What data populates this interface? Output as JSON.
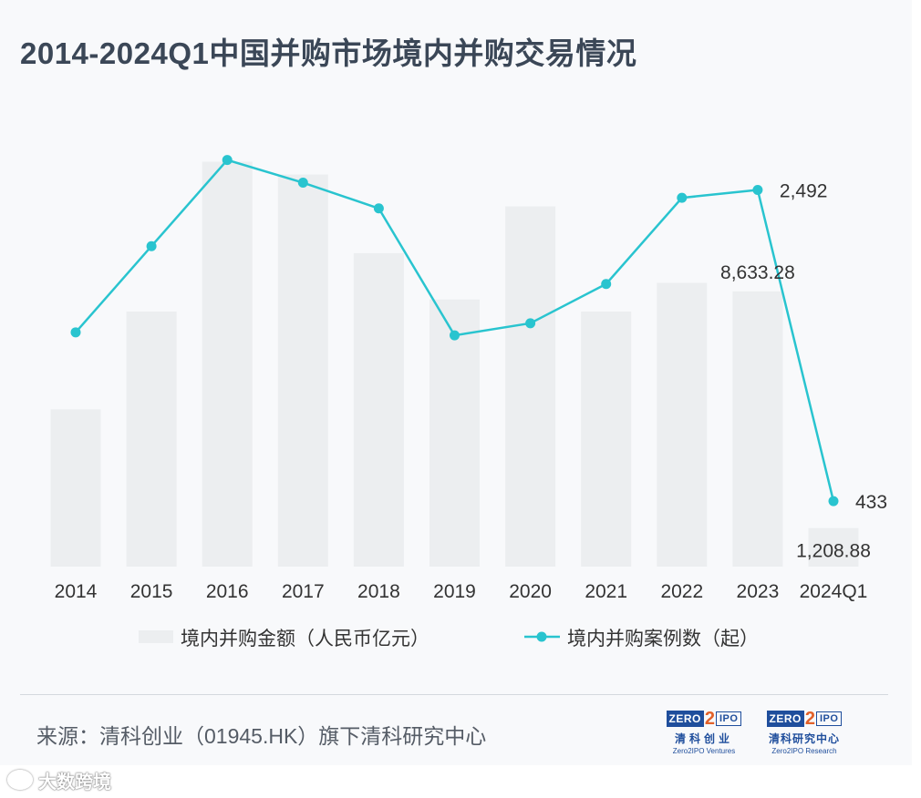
{
  "title": "2014-2024Q1中国并购市场境内并购交易情况",
  "source": "来源：清科创业（01945.HK）旗下清科研究中心",
  "watermark": "大数跨境",
  "logos": [
    {
      "mark_left": "ZERO",
      "mark_mid": "2",
      "mark_right": "IPO",
      "cn": "清科创业",
      "en": "Zero2IPO Ventures"
    },
    {
      "mark_left": "ZERO",
      "mark_mid": "2",
      "mark_right": "IPO",
      "cn": "清科研究中心",
      "en": "Zero2IPO Research"
    }
  ],
  "colors": {
    "bar": "#eceef0",
    "line": "#29c4cf",
    "text": "#333333",
    "title": "#3b4757"
  },
  "chart_data": {
    "type": "bar+line",
    "categories": [
      "2014",
      "2015",
      "2016",
      "2017",
      "2018",
      "2019",
      "2020",
      "2021",
      "2022",
      "2023",
      "2024Q1"
    ],
    "series": [
      {
        "name": "境内并购金额（人民币亿元）",
        "type": "bar",
        "values": [
          4932,
          8000,
          12700,
          12300,
          9830,
          8380,
          11300,
          8000,
          8900,
          8633.28,
          1208.88
        ]
      },
      {
        "name": "境内并购案例数（起）",
        "type": "line",
        "values": [
          1550,
          2120,
          2690,
          2540,
          2370,
          1530,
          1610,
          1870,
          2440,
          2492,
          433
        ]
      }
    ],
    "data_labels": [
      {
        "series": 0,
        "index": 9,
        "text": "8,633.28"
      },
      {
        "series": 0,
        "index": 10,
        "text": "1,208.88"
      },
      {
        "series": 1,
        "index": 9,
        "text": "2,492"
      },
      {
        "series": 1,
        "index": 10,
        "text": "433"
      }
    ],
    "y_left_range": [
      0,
      12800
    ],
    "y_right_range": [
      0,
      2700
    ],
    "legend_position": "bottom",
    "grid": false,
    "axes_visible": false
  }
}
